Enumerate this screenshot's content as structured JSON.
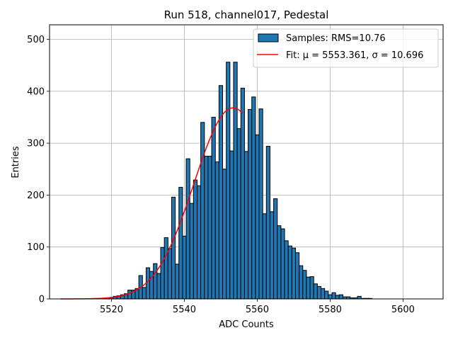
{
  "chart_data": {
    "type": "bar",
    "title": "Run 518, channel017, Pedestal",
    "xlabel": "ADC Counts",
    "ylabel": "Entries",
    "xlim": [
      5503,
      5611
    ],
    "ylim": [
      0,
      528
    ],
    "x_ticks": [
      5520,
      5540,
      5560,
      5580,
      5600
    ],
    "y_ticks": [
      0,
      100,
      200,
      300,
      400,
      500
    ],
    "grid": true,
    "legend_position": "top-right",
    "bin_width": 1,
    "bins": [
      {
        "x": 5516,
        "y": 1
      },
      {
        "x": 5517,
        "y": 1
      },
      {
        "x": 5518,
        "y": 1
      },
      {
        "x": 5519,
        "y": 2
      },
      {
        "x": 5520,
        "y": 3
      },
      {
        "x": 5521,
        "y": 5
      },
      {
        "x": 5522,
        "y": 6
      },
      {
        "x": 5523,
        "y": 8
      },
      {
        "x": 5524,
        "y": 10
      },
      {
        "x": 5525,
        "y": 17
      },
      {
        "x": 5526,
        "y": 17
      },
      {
        "x": 5527,
        "y": 20
      },
      {
        "x": 5528,
        "y": 45
      },
      {
        "x": 5529,
        "y": 22
      },
      {
        "x": 5530,
        "y": 60
      },
      {
        "x": 5531,
        "y": 53
      },
      {
        "x": 5532,
        "y": 68
      },
      {
        "x": 5533,
        "y": 49
      },
      {
        "x": 5534,
        "y": 99
      },
      {
        "x": 5535,
        "y": 118
      },
      {
        "x": 5536,
        "y": 97
      },
      {
        "x": 5537,
        "y": 196
      },
      {
        "x": 5538,
        "y": 67
      },
      {
        "x": 5539,
        "y": 215
      },
      {
        "x": 5540,
        "y": 121
      },
      {
        "x": 5541,
        "y": 270
      },
      {
        "x": 5542,
        "y": 184
      },
      {
        "x": 5543,
        "y": 229
      },
      {
        "x": 5544,
        "y": 218
      },
      {
        "x": 5545,
        "y": 340
      },
      {
        "x": 5546,
        "y": 275
      },
      {
        "x": 5547,
        "y": 275
      },
      {
        "x": 5548,
        "y": 350
      },
      {
        "x": 5549,
        "y": 264
      },
      {
        "x": 5550,
        "y": 411
      },
      {
        "x": 5551,
        "y": 250
      },
      {
        "x": 5552,
        "y": 456
      },
      {
        "x": 5553,
        "y": 285
      },
      {
        "x": 5554,
        "y": 456
      },
      {
        "x": 5555,
        "y": 328
      },
      {
        "x": 5556,
        "y": 406
      },
      {
        "x": 5557,
        "y": 284
      },
      {
        "x": 5558,
        "y": 365
      },
      {
        "x": 5559,
        "y": 389
      },
      {
        "x": 5560,
        "y": 316
      },
      {
        "x": 5561,
        "y": 366
      },
      {
        "x": 5562,
        "y": 164
      },
      {
        "x": 5563,
        "y": 294
      },
      {
        "x": 5564,
        "y": 168
      },
      {
        "x": 5565,
        "y": 193
      },
      {
        "x": 5566,
        "y": 141
      },
      {
        "x": 5567,
        "y": 135
      },
      {
        "x": 5568,
        "y": 112
      },
      {
        "x": 5569,
        "y": 102
      },
      {
        "x": 5570,
        "y": 98
      },
      {
        "x": 5571,
        "y": 89
      },
      {
        "x": 5572,
        "y": 64
      },
      {
        "x": 5573,
        "y": 55
      },
      {
        "x": 5574,
        "y": 42
      },
      {
        "x": 5575,
        "y": 43
      },
      {
        "x": 5576,
        "y": 29
      },
      {
        "x": 5577,
        "y": 24
      },
      {
        "x": 5578,
        "y": 20
      },
      {
        "x": 5579,
        "y": 15
      },
      {
        "x": 5580,
        "y": 8
      },
      {
        "x": 5581,
        "y": 12
      },
      {
        "x": 5582,
        "y": 7
      },
      {
        "x": 5583,
        "y": 8
      },
      {
        "x": 5584,
        "y": 4
      },
      {
        "x": 5585,
        "y": 4
      },
      {
        "x": 5586,
        "y": 2
      },
      {
        "x": 5587,
        "y": 2
      },
      {
        "x": 5588,
        "y": 5
      },
      {
        "x": 5589,
        "y": 1
      },
      {
        "x": 5590,
        "y": 1
      },
      {
        "x": 5591,
        "y": 1
      }
    ],
    "fit": {
      "mu": 5553.361,
      "sigma": 10.696,
      "amplitude": 368,
      "x_range": [
        5506,
        5556
      ]
    },
    "series": [
      {
        "name": "Samples: RMS=10.76",
        "type": "histogram",
        "color": "#1f77b4",
        "edge_color": "#000000"
      },
      {
        "name": "Fit: μ = 5553.361, σ = 10.696",
        "type": "line",
        "color": "#ff0000"
      }
    ]
  }
}
